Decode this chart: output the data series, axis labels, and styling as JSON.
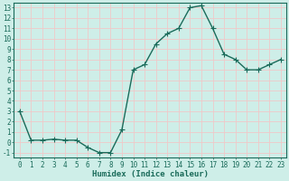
{
  "x": [
    0,
    1,
    2,
    3,
    4,
    5,
    6,
    7,
    8,
    9,
    10,
    11,
    12,
    13,
    14,
    15,
    16,
    17,
    18,
    19,
    20,
    21,
    22,
    23
  ],
  "y": [
    3.0,
    0.2,
    0.2,
    0.3,
    0.2,
    0.2,
    -0.5,
    -1.0,
    -1.0,
    1.2,
    7.0,
    7.5,
    9.5,
    10.5,
    11.0,
    13.0,
    13.2,
    11.0,
    8.5,
    8.0,
    7.0,
    7.0,
    7.5,
    8.0
  ],
  "line_color": "#1a6b5a",
  "marker_color": "#1a6b5a",
  "bg_color": "#ceeee8",
  "grid_color": "#f0c8c8",
  "xlabel": "Humidex (Indice chaleur)",
  "ylabel_ticks": [
    -1,
    0,
    1,
    2,
    3,
    4,
    5,
    6,
    7,
    8,
    9,
    10,
    11,
    12,
    13
  ],
  "ylim": [
    -1.5,
    13.5
  ],
  "xlim": [
    -0.5,
    23.5
  ],
  "xticks": [
    0,
    1,
    2,
    3,
    4,
    5,
    6,
    7,
    8,
    9,
    10,
    11,
    12,
    13,
    14,
    15,
    16,
    17,
    18,
    19,
    20,
    21,
    22,
    23
  ],
  "xlabel_fontsize": 6.5,
  "tick_fontsize": 5.5,
  "line_width": 1.0,
  "marker_size": 2.5
}
